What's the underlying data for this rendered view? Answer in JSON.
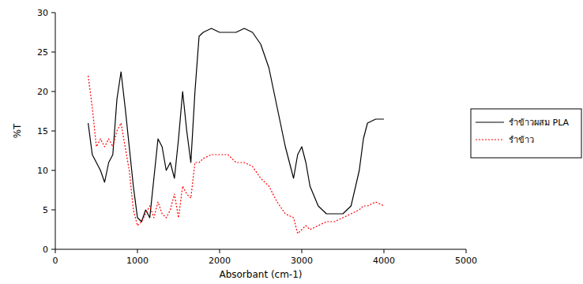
{
  "chart_data": {
    "type": "line",
    "x_label": "Absorbant (cm-1)",
    "y_label": "%T",
    "x": [
      400,
      450,
      500,
      550,
      600,
      650,
      700,
      750,
      800,
      850,
      900,
      950,
      1000,
      1050,
      1100,
      1150,
      1200,
      1250,
      1300,
      1350,
      1400,
      1450,
      1500,
      1550,
      1600,
      1650,
      1700,
      1750,
      1800,
      1900,
      2000,
      2100,
      2200,
      2300,
      2400,
      2500,
      2600,
      2700,
      2800,
      2900,
      2950,
      3000,
      3050,
      3100,
      3200,
      3300,
      3400,
      3500,
      3600,
      3700,
      3750,
      3800,
      3900,
      4000
    ],
    "series": [
      {
        "name": "รำข้าวผสม PLA",
        "color": "#000000",
        "line_style": "solid",
        "values": [
          16,
          12,
          11,
          10,
          8.5,
          11,
          12,
          19,
          22.5,
          18,
          13,
          8,
          4,
          3.5,
          5,
          4,
          9,
          14,
          13,
          10,
          11,
          9,
          14,
          20,
          15,
          11,
          20,
          27,
          27.5,
          28,
          27.5,
          27.5,
          27.5,
          28,
          27.5,
          26,
          23,
          18,
          13,
          9,
          12,
          13,
          11,
          8,
          5.5,
          4.5,
          4.5,
          4.5,
          5.5,
          10,
          14,
          16,
          16.5,
          16.5
        ]
      },
      {
        "name": "รำข้าว",
        "color": "#ff0000",
        "line_style": "dotted",
        "values": [
          22,
          18,
          13,
          14,
          13,
          14,
          13,
          15,
          16,
          13,
          10,
          5,
          3,
          3.5,
          4.5,
          5.5,
          4,
          6,
          4.5,
          4,
          5,
          7,
          4,
          8,
          7,
          6.5,
          11,
          11,
          11.5,
          12,
          12,
          12,
          11,
          11,
          10.5,
          9,
          8,
          6,
          4.5,
          4,
          2,
          2.5,
          3,
          2.5,
          3,
          3.5,
          3.5,
          4,
          4.5,
          5,
          5.5,
          5.5,
          6,
          5.5
        ]
      }
    ],
    "xlim": [
      0,
      5000
    ],
    "xticks": [
      0,
      1000,
      2000,
      3000,
      4000,
      5000
    ],
    "ylim": [
      0,
      30
    ],
    "yticks": [
      0,
      5,
      10,
      15,
      20,
      25,
      30
    ],
    "grid": false,
    "legend": "right"
  }
}
